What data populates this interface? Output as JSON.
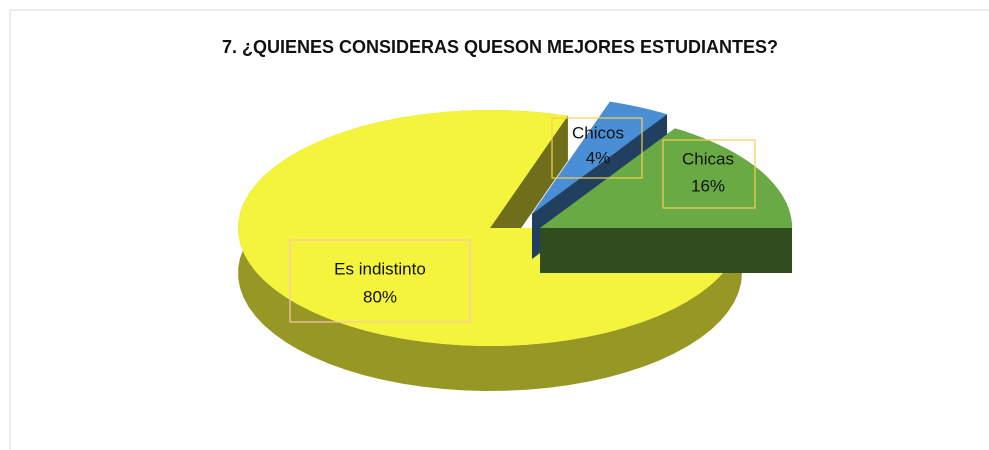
{
  "chart_data": {
    "type": "pie",
    "title": "7. ¿QUIENES CONSIDERAS QUESON MEJORES ESTUDIANTES?",
    "categories": [
      "Chicos",
      "Chicas",
      "Es indistinto"
    ],
    "values": [
      4,
      16,
      80
    ],
    "value_labels": [
      "4%",
      "16%",
      "80%"
    ],
    "colors": [
      "#4a8fd6",
      "#6aaa45",
      "#f4f43c"
    ]
  }
}
